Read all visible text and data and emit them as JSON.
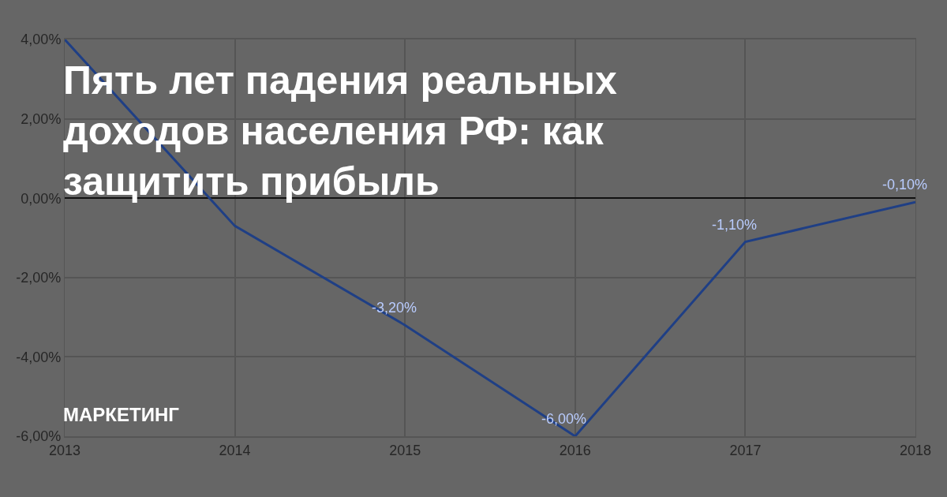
{
  "chart_data": {
    "type": "line",
    "title": "Пять лет падения реальных доходов населения РФ: как защитить прибыль",
    "annotations": [
      "МАРКЕТИНГ"
    ],
    "x": [
      2013,
      2014,
      2015,
      2016,
      2017,
      2018
    ],
    "series": [
      {
        "color": "#1f3f85",
        "values": [
          4.0,
          -0.7,
          -3.2,
          -6.0,
          -1.1,
          -0.1
        ],
        "value_labels": [
          null,
          null,
          "-3,20%",
          "-6,00%",
          "-1,10%",
          "-0,10%"
        ]
      }
    ],
    "xlim": [
      2013,
      2018
    ],
    "xticks": [
      2013,
      2014,
      2015,
      2016,
      2017,
      2018
    ],
    "ylim": [
      -6,
      4
    ],
    "yticks": [
      {
        "value": -6,
        "label": "-6,00%"
      },
      {
        "value": -4,
        "label": "-4,00%"
      },
      {
        "value": -2,
        "label": "-2,00%"
      },
      {
        "value": 0,
        "label": "0,00%"
      },
      {
        "value": 2,
        "label": "2,00%"
      },
      {
        "value": 4,
        "label": "4,00%"
      }
    ],
    "grid": true,
    "marker": "none",
    "line_style": "solid"
  }
}
